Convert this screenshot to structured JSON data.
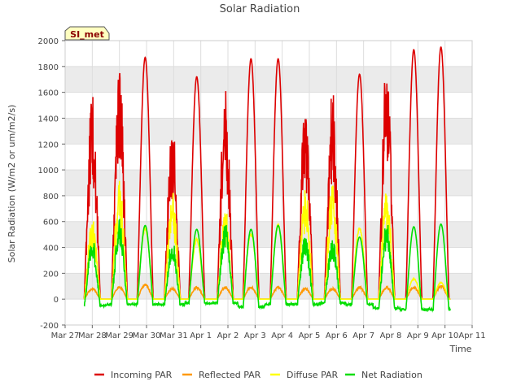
{
  "chart_data": {
    "type": "line",
    "title": "Solar Radiation",
    "xlabel": "Time",
    "ylabel": "Solar Radiation (W/m2 or um/m2/s)",
    "site_badge": "SI_met",
    "xlim": [
      0,
      15
    ],
    "ylim": [
      -200,
      2000
    ],
    "yticks": [
      -200,
      0,
      200,
      400,
      600,
      800,
      1000,
      1200,
      1400,
      1600,
      1800,
      2000
    ],
    "xtick_labels": [
      "Mar 27",
      "Mar 28",
      "Mar 29",
      "Mar 30",
      "Mar 31",
      "Apr 1",
      "Apr 2",
      "Apr 3",
      "Apr 4",
      "Apr 5",
      "Apr 6",
      "Apr 7",
      "Apr 8",
      "Apr 9",
      "Apr 10",
      "Apr 11"
    ],
    "grid": true,
    "legend_position": "bottom",
    "day_peaks": [
      {
        "day": 1,
        "center": 1.0,
        "incoming": 1600,
        "reflected": 80,
        "diffuse": 540,
        "net": 430,
        "night_net": -50
      },
      {
        "day": 2,
        "center": 2.0,
        "incoming": 1800,
        "reflected": 90,
        "diffuse": 770,
        "net": 560,
        "night_net": -40
      },
      {
        "day": 3,
        "center": 2.95,
        "incoming": 1870,
        "reflected": 110,
        "diffuse": 560,
        "net": 570,
        "night_net": -40
      },
      {
        "day": 4,
        "center": 3.95,
        "incoming": 1400,
        "reflected": 80,
        "diffuse": 700,
        "net": 420,
        "night_net": -40
      },
      {
        "day": 5,
        "center": 4.85,
        "incoming": 1720,
        "reflected": 90,
        "diffuse": 470,
        "net": 540,
        "night_net": -30
      },
      {
        "day": 6,
        "center": 5.9,
        "incoming": 1660,
        "reflected": 90,
        "diffuse": 600,
        "net": 540,
        "night_net": -30
      },
      {
        "day": 7,
        "center": 6.85,
        "incoming": 1860,
        "reflected": 90,
        "diffuse": 520,
        "net": 540,
        "night_net": -60
      },
      {
        "day": 8,
        "center": 7.85,
        "incoming": 1860,
        "reflected": 90,
        "diffuse": 580,
        "net": 570,
        "night_net": -40
      },
      {
        "day": 9,
        "center": 8.85,
        "incoming": 1530,
        "reflected": 80,
        "diffuse": 720,
        "net": 460,
        "night_net": -40
      },
      {
        "day": 10,
        "center": 9.85,
        "incoming": 1620,
        "reflected": 80,
        "diffuse": 750,
        "net": 430,
        "night_net": -30
      },
      {
        "day": 11,
        "center": 10.85,
        "incoming": 1740,
        "reflected": 90,
        "diffuse": 560,
        "net": 480,
        "night_net": -40
      },
      {
        "day": 12,
        "center": 11.85,
        "incoming": 1880,
        "reflected": 90,
        "diffuse": 720,
        "net": 550,
        "night_net": -70
      },
      {
        "day": 13,
        "center": 12.85,
        "incoming": 1930,
        "reflected": 90,
        "diffuse": 160,
        "net": 560,
        "night_net": -80
      },
      {
        "day": 14,
        "center": 13.85,
        "incoming": 1950,
        "reflected": 100,
        "diffuse": 130,
        "net": 580,
        "night_net": -80
      }
    ],
    "data_start": 0.7,
    "data_end": 14.2,
    "series": [
      {
        "name": "Incoming PAR",
        "color": "#dd0000"
      },
      {
        "name": "Reflected PAR",
        "color": "#ff9900"
      },
      {
        "name": "Diffuse PAR",
        "color": "#ffff00"
      },
      {
        "name": "Net Radiation",
        "color": "#00dd00"
      }
    ]
  }
}
